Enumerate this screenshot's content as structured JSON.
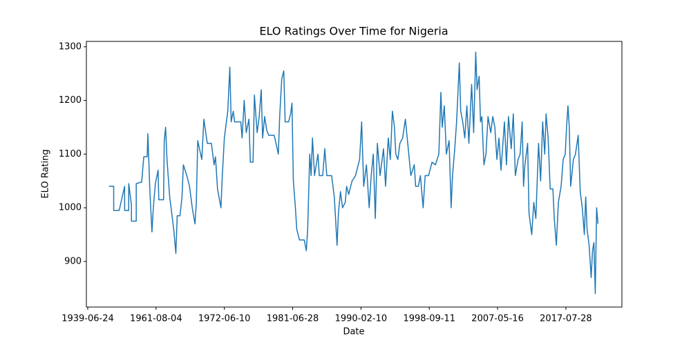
{
  "chart_data": {
    "type": "line",
    "title": "ELO Ratings Over Time for Nigeria",
    "x_label": "Date",
    "y_label": "ELO Rating",
    "color": "#1f77b4",
    "grid": false,
    "xlim": [
      -2,
      782
    ],
    "ylim": [
      815,
      1310
    ],
    "xticks": [
      {
        "value": 0,
        "label": "1939-06-24"
      },
      {
        "value": 100,
        "label": "1961-08-04"
      },
      {
        "value": 200,
        "label": "1972-06-10"
      },
      {
        "value": 300,
        "label": "1981-06-28"
      },
      {
        "value": 400,
        "label": "1990-02-10"
      },
      {
        "value": 500,
        "label": "1998-09-11"
      },
      {
        "value": 600,
        "label": "2007-05-16"
      },
      {
        "value": 700,
        "label": "2017-07-28"
      }
    ],
    "yticks": [
      900,
      1000,
      1100,
      1200,
      1300
    ],
    "x": [
      31,
      38,
      38,
      46,
      54,
      54,
      60,
      60,
      64,
      64,
      71,
      71,
      79,
      82,
      87,
      88,
      91,
      94,
      96,
      99,
      103,
      104,
      111,
      112,
      114,
      116,
      120,
      122,
      126,
      129,
      131,
      135,
      138,
      140,
      145,
      149,
      153,
      157,
      159,
      161,
      167,
      170,
      175,
      181,
      185,
      187,
      190,
      195,
      197,
      200,
      205,
      208,
      210,
      213,
      215,
      224,
      226,
      229,
      232,
      236,
      238,
      242,
      244,
      248,
      251,
      254,
      256,
      259,
      262,
      265,
      270,
      273,
      279,
      281,
      284,
      287,
      289,
      294,
      297,
      299,
      301,
      304,
      306,
      310,
      317,
      320,
      322,
      325,
      327,
      329,
      332,
      337,
      339,
      344,
      347,
      350,
      357,
      361,
      365,
      367,
      370,
      373,
      377,
      379,
      382,
      387,
      392,
      398,
      401,
      404,
      408,
      412,
      415,
      418,
      421,
      424,
      428,
      433,
      436,
      440,
      443,
      446,
      449,
      451,
      454,
      457,
      461,
      465,
      470,
      473,
      478,
      480,
      484,
      487,
      491,
      494,
      499,
      504,
      509,
      514,
      517,
      519,
      522,
      525,
      529,
      532,
      534,
      537,
      540,
      544,
      546,
      549,
      552,
      555,
      558,
      562,
      565,
      568,
      570,
      573,
      575,
      577,
      580,
      583,
      586,
      590,
      593,
      596,
      599,
      602,
      605,
      610,
      613,
      616,
      620,
      623,
      626,
      630,
      633,
      636,
      638,
      640,
      644,
      646,
      650,
      653,
      656,
      660,
      663,
      666,
      669,
      671,
      674,
      677,
      681,
      683,
      686,
      689,
      693,
      696,
      699,
      701,
      703,
      705,
      707,
      711,
      714,
      718,
      721,
      724,
      727,
      729,
      731,
      734,
      737,
      739,
      741,
      743,
      745,
      747
    ],
    "values": [
      1040,
      1040,
      995,
      995,
      1040,
      995,
      995,
      1045,
      1005,
      975,
      975,
      1045,
      1048,
      1095,
      1095,
      1138,
      1030,
      955,
      1000,
      1045,
      1070,
      1015,
      1015,
      1125,
      1150,
      1090,
      1020,
      1000,
      958,
      915,
      985,
      985,
      1020,
      1080,
      1060,
      1040,
      1000,
      970,
      1010,
      1125,
      1090,
      1165,
      1120,
      1120,
      1080,
      1095,
      1035,
      1000,
      1060,
      1130,
      1180,
      1262,
      1160,
      1180,
      1160,
      1160,
      1130,
      1200,
      1140,
      1165,
      1085,
      1085,
      1210,
      1140,
      1170,
      1220,
      1130,
      1170,
      1145,
      1135,
      1135,
      1135,
      1100,
      1170,
      1240,
      1255,
      1160,
      1160,
      1175,
      1195,
      1050,
      1000,
      960,
      940,
      940,
      920,
      960,
      1100,
      1060,
      1130,
      1060,
      1100,
      1060,
      1060,
      1110,
      1060,
      1060,
      1020,
      930,
      990,
      1030,
      1000,
      1010,
      1040,
      1025,
      1050,
      1060,
      1090,
      1160,
      1040,
      1080,
      1000,
      1060,
      1100,
      980,
      1120,
      1060,
      1110,
      1040,
      1130,
      1090,
      1180,
      1150,
      1100,
      1090,
      1120,
      1130,
      1165,
      1100,
      1060,
      1080,
      1040,
      1040,
      1060,
      1000,
      1060,
      1060,
      1085,
      1080,
      1100,
      1215,
      1150,
      1190,
      1100,
      1125,
      1000,
      1060,
      1105,
      1160,
      1270,
      1180,
      1160,
      1130,
      1190,
      1120,
      1230,
      1140,
      1290,
      1220,
      1245,
      1160,
      1170,
      1080,
      1100,
      1170,
      1140,
      1170,
      1150,
      1090,
      1130,
      1070,
      1160,
      1080,
      1170,
      1110,
      1175,
      1060,
      1090,
      1100,
      1160,
      1040,
      1080,
      1120,
      990,
      950,
      1010,
      980,
      1120,
      1050,
      1160,
      1100,
      1175,
      1130,
      1035,
      1035,
      980,
      930,
      1010,
      1040,
      1090,
      1100,
      1150,
      1190,
      1150,
      1040,
      1090,
      1100,
      1135,
      1030,
      1000,
      950,
      1020,
      960,
      930,
      870,
      920,
      935,
      840,
      1000,
      970
    ]
  }
}
